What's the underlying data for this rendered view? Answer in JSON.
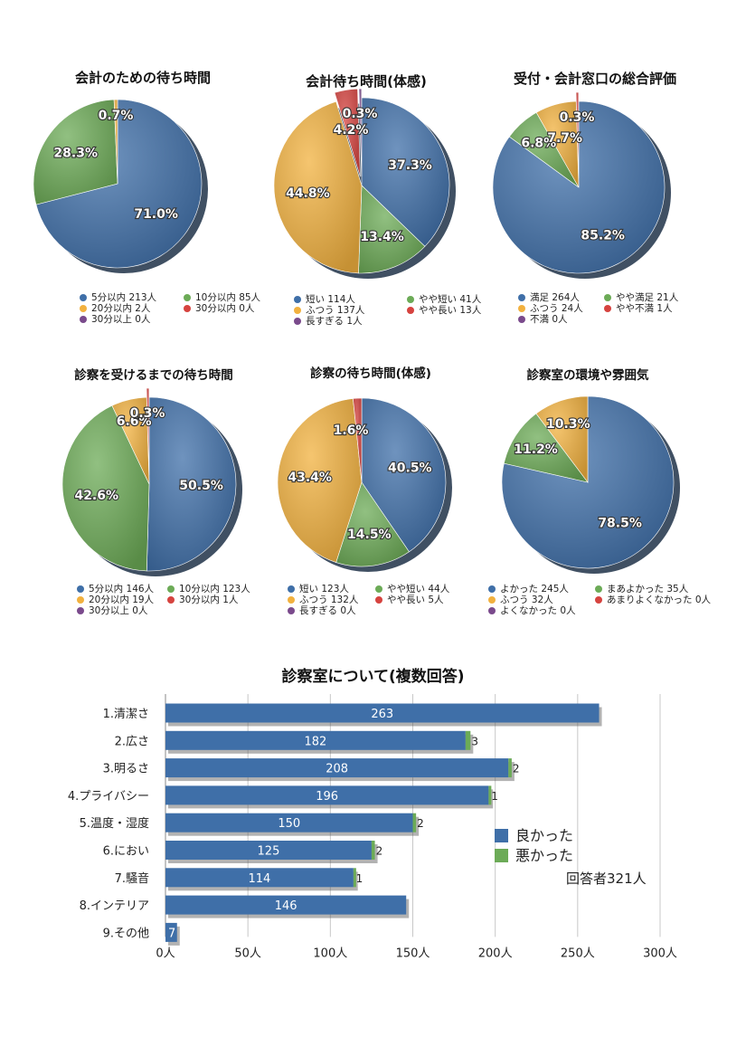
{
  "colors": {
    "blue": "#3f6fa8",
    "green": "#6cab57",
    "yellow": "#f2b13f",
    "red": "#d6433f",
    "purple": "#7a4a8c",
    "bar_good": "#3f6fa8",
    "bar_bad": "#6cab57"
  },
  "chart_data": [
    {
      "type": "pie",
      "title": "会計のための待ち時間",
      "slices": [
        {
          "label": "5分以内",
          "count": 213,
          "unit": "人",
          "percent": 71.0,
          "pct_label": "71.0%",
          "color": "blue"
        },
        {
          "label": "10分以内",
          "count": 85,
          "unit": "人",
          "percent": 28.3,
          "pct_label": "28.3%",
          "color": "green"
        },
        {
          "label": "20分以内",
          "count": 2,
          "unit": "人",
          "percent": 0.7,
          "pct_label": "0.7%",
          "color": "yellow"
        },
        {
          "label": "30分以内",
          "count": 0,
          "unit": "人",
          "percent": 0,
          "pct_label": "",
          "color": "red"
        },
        {
          "label": "30分以上",
          "count": 0,
          "unit": "人",
          "percent": 0,
          "pct_label": "",
          "color": "purple"
        }
      ]
    },
    {
      "type": "pie",
      "title": "会計待ち時間(体感)",
      "slices": [
        {
          "label": "短い",
          "count": 114,
          "unit": "人",
          "percent": 37.3,
          "pct_label": "37.3%",
          "color": "blue"
        },
        {
          "label": "やや短い",
          "count": 41,
          "unit": "人",
          "percent": 13.4,
          "pct_label": "13.4%",
          "color": "green"
        },
        {
          "label": "ふつう",
          "count": 137,
          "unit": "人",
          "percent": 44.8,
          "pct_label": "44.8%",
          "color": "yellow"
        },
        {
          "label": "やや長い",
          "count": 13,
          "unit": "人",
          "percent": 4.2,
          "pct_label": "4.2%",
          "color": "red"
        },
        {
          "label": "長すぎる",
          "count": 1,
          "unit": "人",
          "percent": 0.3,
          "pct_label": "0.3%",
          "color": "purple"
        }
      ]
    },
    {
      "type": "pie",
      "title": "受付・会計窓口の総合評価",
      "slices": [
        {
          "label": "満足",
          "count": 264,
          "unit": "人",
          "percent": 85.2,
          "pct_label": "85.2%",
          "color": "blue"
        },
        {
          "label": "やや満足",
          "count": 21,
          "unit": "人",
          "percent": 6.8,
          "pct_label": "6.8%",
          "color": "green"
        },
        {
          "label": "ふつう",
          "count": 24,
          "unit": "人",
          "percent": 7.7,
          "pct_label": "7.7%",
          "color": "yellow"
        },
        {
          "label": "やや不満",
          "count": 1,
          "unit": "人",
          "percent": 0.3,
          "pct_label": "0.3%",
          "color": "red"
        },
        {
          "label": "不満",
          "count": 0,
          "unit": "人",
          "percent": 0,
          "pct_label": "",
          "color": "purple"
        }
      ]
    },
    {
      "type": "pie",
      "title": "診察を受けるまでの待ち時間",
      "slices": [
        {
          "label": "5分以内",
          "count": 146,
          "unit": "人",
          "percent": 50.5,
          "pct_label": "50.5%",
          "color": "blue"
        },
        {
          "label": "10分以内",
          "count": 123,
          "unit": "人",
          "percent": 42.6,
          "pct_label": "42.6%",
          "color": "green"
        },
        {
          "label": "20分以内",
          "count": 19,
          "unit": "人",
          "percent": 6.6,
          "pct_label": "6.6%",
          "color": "yellow"
        },
        {
          "label": "30分以内",
          "count": 1,
          "unit": "人",
          "percent": 0.3,
          "pct_label": "0.3%",
          "color": "red"
        },
        {
          "label": "30分以上",
          "count": 0,
          "unit": "人",
          "percent": 0,
          "pct_label": "",
          "color": "purple"
        }
      ]
    },
    {
      "type": "pie",
      "title": "診察の待ち時間(体感)",
      "slices": [
        {
          "label": "短い",
          "count": 123,
          "unit": "人",
          "percent": 40.5,
          "pct_label": "40.5%",
          "color": "blue"
        },
        {
          "label": "やや短い",
          "count": 44,
          "unit": "人",
          "percent": 14.5,
          "pct_label": "14.5%",
          "color": "green"
        },
        {
          "label": "ふつう",
          "count": 132,
          "unit": "人",
          "percent": 43.4,
          "pct_label": "43.4%",
          "color": "yellow"
        },
        {
          "label": "やや長い",
          "count": 5,
          "unit": "人",
          "percent": 1.6,
          "pct_label": "1.6%",
          "color": "red"
        },
        {
          "label": "長すぎる",
          "count": 0,
          "unit": "人",
          "percent": 0,
          "pct_label": "",
          "color": "purple"
        }
      ]
    },
    {
      "type": "pie",
      "title": "診察室の環境や雰囲気",
      "slices": [
        {
          "label": "よかった",
          "count": 245,
          "unit": "人",
          "percent": 78.5,
          "pct_label": "78.5%",
          "color": "blue"
        },
        {
          "label": "まあよかった",
          "count": 35,
          "unit": "人",
          "percent": 11.2,
          "pct_label": "11.2%",
          "color": "green"
        },
        {
          "label": "ふつう",
          "count": 32,
          "unit": "人",
          "percent": 10.3,
          "pct_label": "10.3%",
          "color": "yellow"
        },
        {
          "label": "あまりよくなかった",
          "count": 0,
          "unit": "人",
          "percent": 0,
          "pct_label": "",
          "color": "red"
        },
        {
          "label": "よくなかった",
          "count": 0,
          "unit": "人",
          "percent": 0,
          "pct_label": "",
          "color": "purple"
        }
      ]
    },
    {
      "type": "bar",
      "orientation": "horizontal",
      "stacked": true,
      "title": "診察室について(複数回答)",
      "categories": [
        "1.清潔さ",
        "2.広さ",
        "3.明るさ",
        "4.プライバシー",
        "5.温度・湿度",
        "6.におい",
        "7.騒音",
        "8.インテリア",
        "9.その他"
      ],
      "series": [
        {
          "name": "良かった",
          "color": "bar_good",
          "values": [
            263,
            182,
            208,
            196,
            150,
            125,
            114,
            146,
            7
          ]
        },
        {
          "name": "悪かった",
          "color": "bar_bad",
          "values": [
            0,
            3,
            2,
            1,
            2,
            2,
            1,
            0,
            0
          ]
        }
      ],
      "xlim": [
        0,
        300
      ],
      "xticks": [
        0,
        50,
        100,
        150,
        200,
        250,
        300
      ],
      "xtick_labels": [
        "0人",
        "50人",
        "100人",
        "150人",
        "200人",
        "250人",
        "300人"
      ],
      "respondents_note": "回答者321人"
    }
  ]
}
